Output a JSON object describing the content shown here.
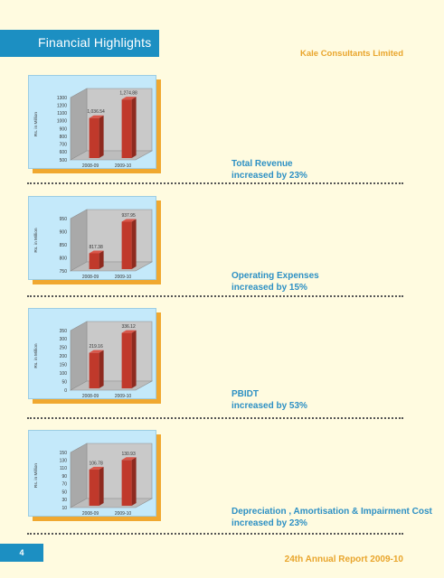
{
  "header": {
    "title": "Financial Highlights",
    "company": "Kale Consultants Limited"
  },
  "footer": {
    "page_number": "4",
    "report": "24th Annual Report 2009-10"
  },
  "colors": {
    "banner": "#1c8fc2",
    "accent": "#e9a52c",
    "panel": "#c4e9fa",
    "bar": "#c0392b",
    "caption": "#2d90c4"
  },
  "captions": [
    {
      "line1": "Total Revenue",
      "line2": "increased by 23%"
    },
    {
      "line1": "Operating Expenses",
      "line2": "increased by 15%"
    },
    {
      "line1": "PBIDT",
      "line2": "increased by 53%"
    },
    {
      "line1": "Depreciation , Amortisation & Impairment Cost",
      "line2": "increased by 23%"
    }
  ],
  "chart_data": [
    {
      "type": "bar",
      "categories": [
        "2008-09",
        "2009-10"
      ],
      "values": [
        1036.54,
        1274.88
      ],
      "value_labels": [
        "1,036.54",
        "1,274.88"
      ],
      "ylabel": "Rs. in Million",
      "yticks": [
        500,
        600,
        700,
        800,
        900,
        1000,
        1100,
        1200,
        1300
      ],
      "ylim": [
        500,
        1300
      ],
      "grid": false,
      "three_d": true
    },
    {
      "type": "bar",
      "categories": [
        "2008-09",
        "2009-10"
      ],
      "values": [
        817.38,
        937.95
      ],
      "value_labels": [
        "817.38",
        "937.95"
      ],
      "ylabel": "Rs. in Million",
      "yticks": [
        750,
        800,
        850,
        900,
        950
      ],
      "ylim": [
        750,
        950
      ],
      "grid": false,
      "three_d": true
    },
    {
      "type": "bar",
      "categories": [
        "2008-09",
        "2009-10"
      ],
      "values": [
        219.16,
        336.12
      ],
      "value_labels": [
        "219.16",
        "336.12"
      ],
      "ylabel": "Rs. in Million",
      "yticks": [
        0,
        50,
        100,
        150,
        200,
        250,
        300,
        350
      ],
      "ylim": [
        0,
        350
      ],
      "grid": false,
      "three_d": true
    },
    {
      "type": "bar",
      "categories": [
        "2008-09",
        "2009-10"
      ],
      "values": [
        106.78,
        130.93
      ],
      "value_labels": [
        "106.78",
        "130.93"
      ],
      "ylabel": "Rs. in Million",
      "yticks": [
        10,
        30,
        50,
        70,
        90,
        110,
        130,
        150
      ],
      "ylim": [
        10,
        150
      ],
      "grid": false,
      "three_d": true
    }
  ]
}
